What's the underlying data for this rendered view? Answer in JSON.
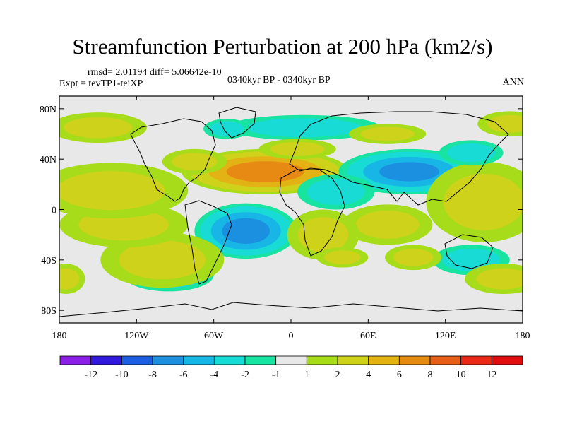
{
  "title": "Streamfunction Perturbation at 200 hPa (km2/s)",
  "subtitle": {
    "stats": "rmsd= 2.01194 diff= 5.06642e-10",
    "experiment": "Expt = tevTP1-teiXP",
    "period": "0340kyr BP - 0340kyr BP",
    "season": "ANN"
  },
  "chart_data": {
    "type": "contour-map",
    "projection": "cylindrical-equidistant",
    "lon_range": [
      -180,
      180
    ],
    "lat_range": [
      -90,
      90
    ],
    "x_ticks": [
      {
        "lon": -180,
        "label": "180"
      },
      {
        "lon": -120,
        "label": "120W"
      },
      {
        "lon": -60,
        "label": "60W"
      },
      {
        "lon": 0,
        "label": "0"
      },
      {
        "lon": 60,
        "label": "60E"
      },
      {
        "lon": 120,
        "label": "120E"
      },
      {
        "lon": 180,
        "label": "180"
      }
    ],
    "y_ticks": [
      {
        "lat": 80,
        "label": "80N"
      },
      {
        "lat": 40,
        "label": "40N"
      },
      {
        "lat": 0,
        "label": "0"
      },
      {
        "lat": -40,
        "label": "40S"
      },
      {
        "lat": -80,
        "label": "80S"
      }
    ],
    "levels": [
      -12,
      -10,
      -8,
      -6,
      -4,
      -2,
      -1,
      1,
      2,
      4,
      6,
      8,
      10,
      12
    ],
    "level_labels": [
      "-12",
      "-10",
      "-8",
      "-6",
      "-4",
      "-2",
      "-1",
      "1",
      "2",
      "4",
      "6",
      "8",
      "10",
      "12"
    ],
    "colors": [
      "#8c1fe6",
      "#3019d9",
      "#1a5fe0",
      "#1b8fe0",
      "#18b6e6",
      "#17dbd4",
      "#19e3a0",
      "#e8e8e8",
      "#a6dc1a",
      "#cfd21a",
      "#e3b316",
      "#e68a14",
      "#e65f14",
      "#e82a14",
      "#e00f0f"
    ],
    "features": [
      {
        "name": "north-atlantic-high",
        "lon": -20,
        "lat": 30,
        "rx": 65,
        "ry": 18,
        "value": 7
      },
      {
        "name": "north-atlantic-high-west",
        "lon": -75,
        "lat": 38,
        "rx": 25,
        "ry": 10,
        "value": 2.5
      },
      {
        "name": "asia-low",
        "lon": 92,
        "lat": 30,
        "rx": 55,
        "ry": 18,
        "value": -6.5
      },
      {
        "name": "africa-low",
        "lon": 35,
        "lat": 14,
        "rx": 30,
        "ry": 14,
        "value": -3
      },
      {
        "name": "south-atlantic-low",
        "lon": -35,
        "lat": -17,
        "rx": 40,
        "ry": 22,
        "value": -7
      },
      {
        "name": "southeast-pacific-low",
        "lon": -95,
        "lat": -52,
        "rx": 35,
        "ry": 13,
        "value": -4
      },
      {
        "name": "southeast-pacific-ring",
        "lon": -100,
        "lat": -40,
        "rx": 48,
        "ry": 22,
        "value": 2.5
      },
      {
        "name": "central-pacific-low",
        "lon": -140,
        "lat": -10,
        "rx": 25,
        "ry": 12,
        "value": -3
      },
      {
        "name": "central-pacific-ring",
        "lon": -130,
        "lat": -12,
        "rx": 50,
        "ry": 18,
        "value": 2.5
      },
      {
        "name": "north-pacific-high",
        "lon": -160,
        "lat": 15,
        "rx": 30,
        "ry": 15,
        "value": 4
      },
      {
        "name": "north-pacific-ring",
        "lon": -140,
        "lat": 15,
        "rx": 60,
        "ry": 22,
        "value": 2.5
      },
      {
        "name": "west-pacific-high",
        "lon": 160,
        "lat": 8,
        "rx": 35,
        "ry": 25,
        "value": 4.5
      },
      {
        "name": "west-pacific-ring",
        "lon": 150,
        "lat": 6,
        "rx": 45,
        "ry": 32,
        "value": 2.5
      },
      {
        "name": "indian-ocean-high",
        "lon": 72,
        "lat": -13,
        "rx": 22,
        "ry": 10,
        "value": 4
      },
      {
        "name": "indian-ocean-ring",
        "lon": 75,
        "lat": -12,
        "rx": 35,
        "ry": 16,
        "value": 2.5
      },
      {
        "name": "south-africa-high",
        "lon": 25,
        "lat": -20,
        "rx": 20,
        "ry": 16,
        "value": 3.5
      },
      {
        "name": "south-africa-ring",
        "lon": 25,
        "lat": -20,
        "rx": 28,
        "ry": 20,
        "value": 2.5
      },
      {
        "name": "europe-low",
        "lon": 10,
        "lat": 65,
        "rx": 60,
        "ry": 10,
        "value": -3
      },
      {
        "name": "greenland-low",
        "lon": -50,
        "lat": 64,
        "rx": 18,
        "ry": 8,
        "value": -3
      },
      {
        "name": "arctic-high-west",
        "lon": -150,
        "lat": 65,
        "rx": 38,
        "ry": 12,
        "value": 2.5
      },
      {
        "name": "arctic-high-east",
        "lon": 170,
        "lat": 68,
        "rx": 25,
        "ry": 10,
        "value": 2.5
      },
      {
        "name": "north-atlantic-ring",
        "lon": 5,
        "lat": 48,
        "rx": 30,
        "ry": 8,
        "value": 2.5
      },
      {
        "name": "asia-high-north",
        "lon": 75,
        "lat": 60,
        "rx": 30,
        "ry": 8,
        "value": 2.5
      },
      {
        "name": "siberia-low",
        "lon": 140,
        "lat": 45,
        "rx": 25,
        "ry": 10,
        "value": -3
      },
      {
        "name": "southern-ocean-high",
        "lon": 40,
        "lat": -38,
        "rx": 20,
        "ry": 8,
        "value": 2.5
      },
      {
        "name": "southern-ocean-east-low",
        "lon": 140,
        "lat": -40,
        "rx": 30,
        "ry": 12,
        "value": -3
      },
      {
        "name": "southern-ocean-far-east",
        "lon": 165,
        "lat": -55,
        "rx": 30,
        "ry": 12,
        "value": 2.5
      },
      {
        "name": "southern-ocean-west",
        "lon": -175,
        "lat": -55,
        "rx": 15,
        "ry": 12,
        "value": 2.5
      },
      {
        "name": "southern-ocean-south",
        "lon": 95,
        "lat": -38,
        "rx": 22,
        "ry": 10,
        "value": 2.5
      }
    ]
  }
}
